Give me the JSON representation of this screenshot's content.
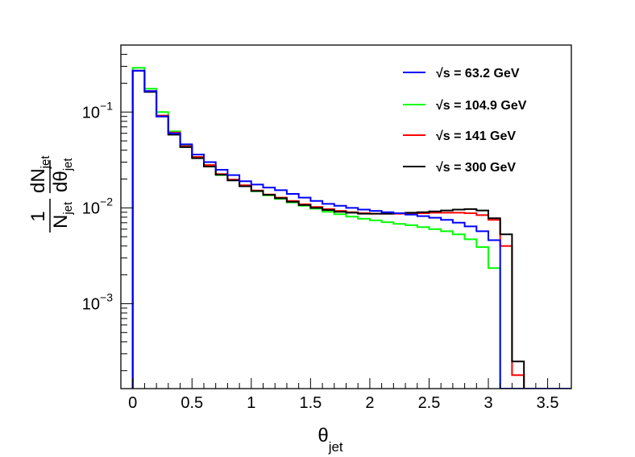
{
  "chart_data": {
    "type": "line",
    "subtype": "step-histogram",
    "title": "",
    "xlabel": {
      "main": "θ",
      "sub": "jet"
    },
    "ylabel": {
      "numerator_left": "1",
      "denominator_left": "N",
      "denominator_left_sub": "jet",
      "numerator_right": "dN",
      "numerator_right_sub": "jet",
      "denominator_right": "dθ",
      "denominator_right_sub": "jet"
    },
    "xlim": [
      -0.1,
      3.7
    ],
    "ylim": [
      0.00013,
      0.5
    ],
    "yscale": "log",
    "x_ticks": [
      {
        "value": 0,
        "label": "0"
      },
      {
        "value": 0.5,
        "label": "0.5"
      },
      {
        "value": 1,
        "label": "1"
      },
      {
        "value": 1.5,
        "label": "1.5"
      },
      {
        "value": 2,
        "label": "2"
      },
      {
        "value": 2.5,
        "label": "2.5"
      },
      {
        "value": 3,
        "label": "3"
      },
      {
        "value": 3.5,
        "label": "3.5"
      }
    ],
    "y_ticks": [
      {
        "value": 0.1,
        "base": "10",
        "exp": "−1"
      },
      {
        "value": 0.01,
        "base": "10",
        "exp": "−2"
      },
      {
        "value": 0.001,
        "base": "10",
        "exp": "−3"
      }
    ],
    "bin_edges": [
      0,
      0.1,
      0.2,
      0.3,
      0.4,
      0.5,
      0.6,
      0.7,
      0.8,
      0.9,
      1.0,
      1.1,
      1.2,
      1.3,
      1.4,
      1.5,
      1.6,
      1.7,
      1.8,
      1.9,
      2.0,
      2.1,
      2.2,
      2.3,
      2.4,
      2.5,
      2.6,
      2.7,
      2.8,
      2.9,
      3.0,
      3.1,
      3.2,
      3.3,
      3.4,
      3.5,
      3.6,
      3.7
    ],
    "legend_position": "top-right",
    "series": [
      {
        "name": "√s = 63.2 GeV",
        "legend_prefix": "√",
        "legend_rest": "s = 63.2 GeV",
        "color": "#0000ff",
        "values": [
          0.27,
          0.165,
          0.09,
          0.06,
          0.046,
          0.036,
          0.03,
          0.025,
          0.022,
          0.019,
          0.0175,
          0.0163,
          0.0153,
          0.014,
          0.0128,
          0.0118,
          0.011,
          0.0105,
          0.01,
          0.0096,
          0.0093,
          0.009,
          0.0088,
          0.0085,
          0.0082,
          0.0079,
          0.0075,
          0.007,
          0.0064,
          0.0057,
          0.0046,
          0,
          0,
          0,
          0,
          0,
          0
        ]
      },
      {
        "name": "√s = 104.9 GeV",
        "legend_prefix": "√",
        "legend_rest": "s = 104.9 GeV",
        "color": "#00ff00",
        "values": [
          0.29,
          0.175,
          0.1,
          0.063,
          0.045,
          0.034,
          0.027,
          0.022,
          0.0195,
          0.017,
          0.0149,
          0.0135,
          0.0124,
          0.0114,
          0.0105,
          0.0098,
          0.0091,
          0.0086,
          0.0081,
          0.0077,
          0.0074,
          0.0071,
          0.0068,
          0.0066,
          0.0063,
          0.006,
          0.0057,
          0.0053,
          0.0047,
          0.0039,
          0.00235,
          0,
          0,
          0,
          0,
          0,
          0
        ]
      },
      {
        "name": "√s = 141 GeV",
        "legend_prefix": "√",
        "legend_rest": "s = 141 GeV",
        "color": "#ff0000",
        "values": [
          0.27,
          0.165,
          0.092,
          0.061,
          0.044,
          0.034,
          0.028,
          0.0225,
          0.0197,
          0.0172,
          0.0152,
          0.0138,
          0.0128,
          0.0118,
          0.0109,
          0.0102,
          0.0097,
          0.0093,
          0.009,
          0.0088,
          0.0087,
          0.0087,
          0.0087,
          0.0087,
          0.0088,
          0.0089,
          0.0089,
          0.0089,
          0.0088,
          0.0084,
          0.0075,
          0.004,
          0.00018,
          0,
          0,
          0,
          0
        ]
      },
      {
        "name": "√s = 300 GeV",
        "legend_prefix": "√",
        "legend_rest": "s = 300 GeV",
        "color": "#000000",
        "values": [
          0.27,
          0.162,
          0.09,
          0.058,
          0.043,
          0.033,
          0.027,
          0.0222,
          0.0193,
          0.0168,
          0.015,
          0.0137,
          0.0126,
          0.0116,
          0.0107,
          0.01,
          0.0095,
          0.0091,
          0.0089,
          0.0087,
          0.0087,
          0.0087,
          0.0088,
          0.0089,
          0.009,
          0.0092,
          0.0094,
          0.0096,
          0.0097,
          0.0094,
          0.0078,
          0.0053,
          0.00025,
          0,
          0,
          0,
          0
        ]
      }
    ]
  }
}
